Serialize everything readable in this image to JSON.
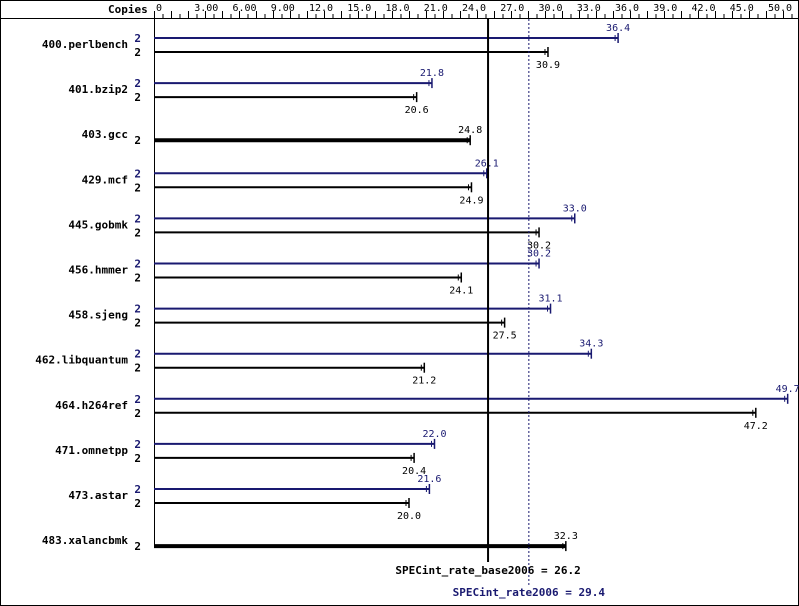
{
  "chart_data": {
    "type": "bar",
    "orientation": "horizontal",
    "header_label": "Copies",
    "x_ticks": [
      "0",
      "3.00",
      "6.00",
      "9.00",
      "12.0",
      "15.0",
      "18.0",
      "21.0",
      "24.0",
      "27.0",
      "30.0",
      "33.0",
      "36.0",
      "39.0",
      "42.0",
      "45.0",
      "50.0"
    ],
    "xlim": [
      0,
      50
    ],
    "grid": false,
    "colors": {
      "peak": "#191970",
      "base": "#000000"
    },
    "benchmarks": [
      {
        "name": "400.perlbench",
        "peak": {
          "copies": "2",
          "value": 36.4,
          "label": "36.4"
        },
        "base": {
          "copies": "2",
          "value": 30.9,
          "label": "30.9"
        }
      },
      {
        "name": "401.bzip2",
        "peak": {
          "copies": "2",
          "value": 21.8,
          "label": "21.8"
        },
        "base": {
          "copies": "2",
          "value": 20.6,
          "label": "20.6"
        }
      },
      {
        "name": "403.gcc",
        "combined": true,
        "base": {
          "copies": "2",
          "value": 24.8,
          "label": "24.8"
        }
      },
      {
        "name": "429.mcf",
        "peak": {
          "copies": "2",
          "value": 26.1,
          "label": "26.1"
        },
        "base": {
          "copies": "2",
          "value": 24.9,
          "label": "24.9"
        }
      },
      {
        "name": "445.gobmk",
        "peak": {
          "copies": "2",
          "value": 33.0,
          "label": "33.0"
        },
        "base": {
          "copies": "2",
          "value": 30.2,
          "label": "30.2"
        }
      },
      {
        "name": "456.hmmer",
        "peak": {
          "copies": "2",
          "value": 30.2,
          "label": "30.2"
        },
        "base": {
          "copies": "2",
          "value": 24.1,
          "label": "24.1"
        }
      },
      {
        "name": "458.sjeng",
        "peak": {
          "copies": "2",
          "value": 31.1,
          "label": "31.1"
        },
        "base": {
          "copies": "2",
          "value": 27.5,
          "label": "27.5"
        }
      },
      {
        "name": "462.libquantum",
        "peak": {
          "copies": "2",
          "value": 34.3,
          "label": "34.3"
        },
        "base": {
          "copies": "2",
          "value": 21.2,
          "label": "21.2"
        }
      },
      {
        "name": "464.h264ref",
        "peak": {
          "copies": "2",
          "value": 49.7,
          "label": "49.7"
        },
        "base": {
          "copies": "2",
          "value": 47.2,
          "label": "47.2"
        }
      },
      {
        "name": "471.omnetpp",
        "peak": {
          "copies": "2",
          "value": 22.0,
          "label": "22.0"
        },
        "base": {
          "copies": "2",
          "value": 20.4,
          "label": "20.4"
        }
      },
      {
        "name": "473.astar",
        "peak": {
          "copies": "2",
          "value": 21.6,
          "label": "21.6"
        },
        "base": {
          "copies": "2",
          "value": 20.0,
          "label": "20.0"
        }
      },
      {
        "name": "483.xalancbmk",
        "combined": true,
        "base": {
          "copies": "2",
          "value": 32.3,
          "label": "32.3"
        }
      }
    ],
    "reference_lines": [
      {
        "name": "base",
        "value": 26.2,
        "label": "SPECint_rate_base2006 = 26.2",
        "style": "solid"
      },
      {
        "name": "peak",
        "value": 29.4,
        "label": "SPECint_rate2006 = 29.4",
        "style": "dotted"
      }
    ]
  }
}
